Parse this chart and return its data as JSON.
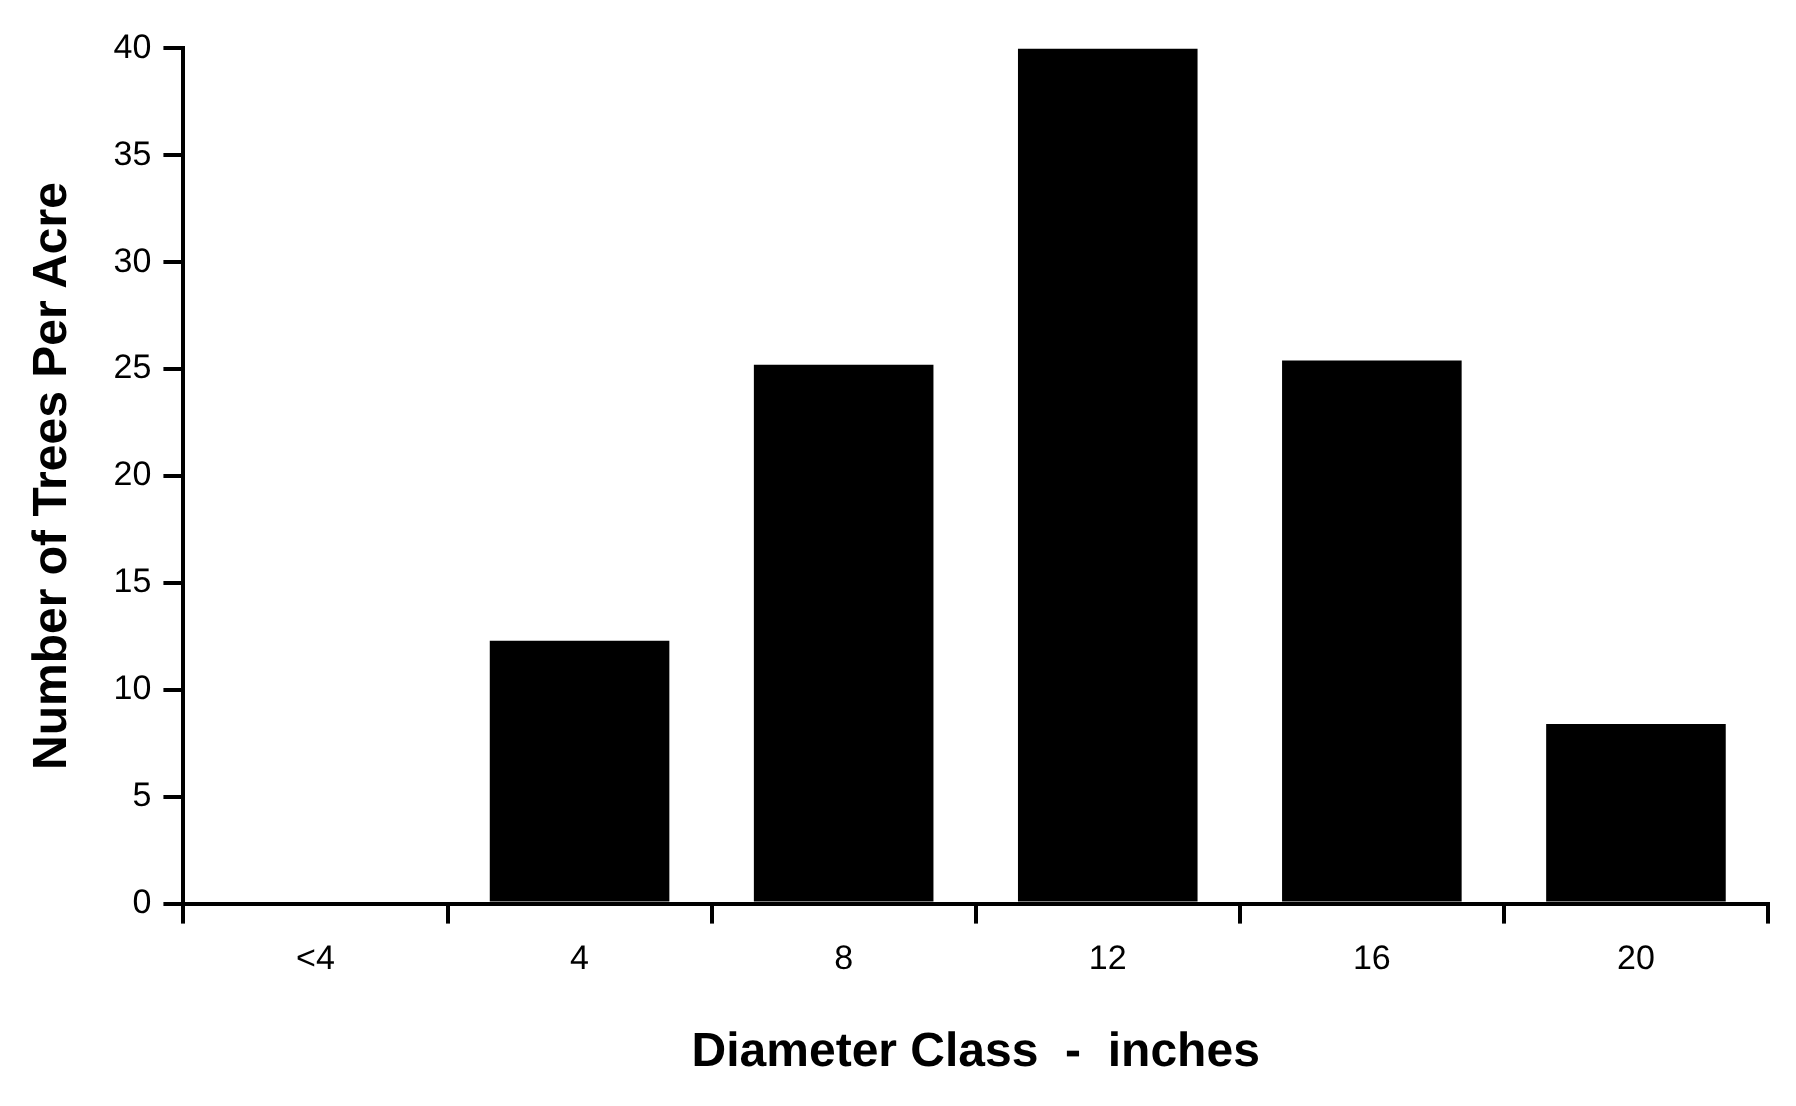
{
  "chart_data": {
    "type": "bar",
    "xlabel": "Diameter Class  -  inches",
    "ylabel": "Number of Trees Per Acre",
    "categories": [
      "<4",
      "4",
      "8",
      "12",
      "16",
      "20"
    ],
    "values": [
      0,
      12.3,
      25.2,
      40,
      25.4,
      8.4
    ],
    "color": "#000000",
    "ylim": [
      0,
      40
    ],
    "yticks": [
      0,
      5,
      10,
      15,
      20,
      25,
      30,
      35,
      40
    ],
    "grid": false,
    "legend": false
  }
}
